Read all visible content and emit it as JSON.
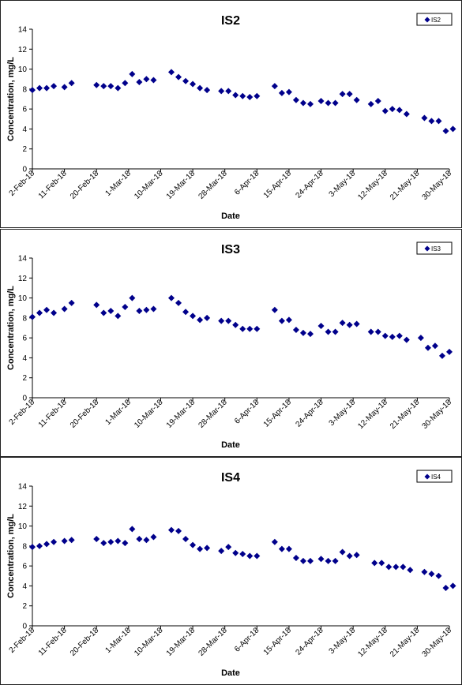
{
  "chart_data": [
    {
      "type": "scatter",
      "title": "IS2",
      "xlabel": "Date",
      "ylabel": "Concentration, mg/L",
      "ylim": [
        0,
        14
      ],
      "yticks": [
        0,
        2,
        4,
        6,
        8,
        10,
        12,
        14
      ],
      "xlim": [
        "2-Feb-18",
        "30-May-18"
      ],
      "xticks": [
        "2-Feb-18",
        "11-Feb-18",
        "20-Feb-18",
        "1-Mar-18",
        "10-Mar-18",
        "19-Mar-18",
        "28-Mar-18",
        "6-Apr-18",
        "15-Apr-18",
        "24-Apr-18",
        "3-May-18",
        "12-May-18",
        "21-May-18",
        "30-May-18"
      ],
      "legend": "top-right",
      "grid": false,
      "marker_color": "#00008B",
      "series": [
        {
          "name": "IS2",
          "points": [
            [
              "2-Feb-18",
              7.9
            ],
            [
              "4-Feb-18",
              8.1
            ],
            [
              "6-Feb-18",
              8.1
            ],
            [
              "8-Feb-18",
              8.3
            ],
            [
              "11-Feb-18",
              8.2
            ],
            [
              "13-Feb-18",
              8.6
            ],
            [
              "20-Feb-18",
              8.4
            ],
            [
              "22-Feb-18",
              8.3
            ],
            [
              "24-Feb-18",
              8.3
            ],
            [
              "26-Feb-18",
              8.1
            ],
            [
              "28-Feb-18",
              8.6
            ],
            [
              "2-Mar-18",
              9.5
            ],
            [
              "4-Mar-18",
              8.7
            ],
            [
              "6-Mar-18",
              9.0
            ],
            [
              "8-Mar-18",
              8.9
            ],
            [
              "13-Mar-18",
              9.7
            ],
            [
              "15-Mar-18",
              9.2
            ],
            [
              "17-Mar-18",
              8.8
            ],
            [
              "19-Mar-18",
              8.5
            ],
            [
              "21-Mar-18",
              8.1
            ],
            [
              "23-Mar-18",
              7.9
            ],
            [
              "27-Mar-18",
              7.8
            ],
            [
              "29-Mar-18",
              7.8
            ],
            [
              "31-Mar-18",
              7.4
            ],
            [
              "2-Apr-18",
              7.3
            ],
            [
              "4-Apr-18",
              7.2
            ],
            [
              "6-Apr-18",
              7.3
            ],
            [
              "11-Apr-18",
              8.3
            ],
            [
              "13-Apr-18",
              7.6
            ],
            [
              "15-Apr-18",
              7.7
            ],
            [
              "17-Apr-18",
              6.9
            ],
            [
              "19-Apr-18",
              6.6
            ],
            [
              "21-Apr-18",
              6.5
            ],
            [
              "24-Apr-18",
              6.8
            ],
            [
              "26-Apr-18",
              6.6
            ],
            [
              "28-Apr-18",
              6.6
            ],
            [
              "30-Apr-18",
              7.5
            ],
            [
              "2-May-18",
              7.5
            ],
            [
              "4-May-18",
              6.9
            ],
            [
              "8-May-18",
              6.5
            ],
            [
              "10-May-18",
              6.8
            ],
            [
              "12-May-18",
              5.8
            ],
            [
              "14-May-18",
              6.0
            ],
            [
              "16-May-18",
              5.9
            ],
            [
              "18-May-18",
              5.5
            ],
            [
              "23-May-18",
              5.1
            ],
            [
              "25-May-18",
              4.8
            ],
            [
              "27-May-18",
              4.8
            ],
            [
              "29-May-18",
              3.8
            ],
            [
              "31-May-18",
              4.0
            ]
          ]
        }
      ]
    },
    {
      "type": "scatter",
      "title": "IS3",
      "xlabel": "Date",
      "ylabel": "Concentration, mg/L",
      "ylim": [
        0,
        14
      ],
      "yticks": [
        0,
        2,
        4,
        6,
        8,
        10,
        12,
        14
      ],
      "xlim": [
        "2-Feb-18",
        "30-May-18"
      ],
      "xticks": [
        "2-Feb-18",
        "11-Feb-18",
        "20-Feb-18",
        "1-Mar-18",
        "10-Mar-18",
        "19-Mar-18",
        "28-Mar-18",
        "6-Apr-18",
        "15-Apr-18",
        "24-Apr-18",
        "3-May-18",
        "12-May-18",
        "21-May-18",
        "30-May-18"
      ],
      "legend": "top-right",
      "grid": false,
      "marker_color": "#00008B",
      "series": [
        {
          "name": "IS3",
          "points": [
            [
              "2-Feb-18",
              8.1
            ],
            [
              "4-Feb-18",
              8.5
            ],
            [
              "6-Feb-18",
              8.8
            ],
            [
              "8-Feb-18",
              8.5
            ],
            [
              "11-Feb-18",
              8.9
            ],
            [
              "13-Feb-18",
              9.5
            ],
            [
              "20-Feb-18",
              9.3
            ],
            [
              "22-Feb-18",
              8.5
            ],
            [
              "24-Feb-18",
              8.7
            ],
            [
              "26-Feb-18",
              8.2
            ],
            [
              "28-Feb-18",
              9.1
            ],
            [
              "2-Mar-18",
              10.0
            ],
            [
              "4-Mar-18",
              8.7
            ],
            [
              "6-Mar-18",
              8.8
            ],
            [
              "8-Mar-18",
              8.9
            ],
            [
              "13-Mar-18",
              10.0
            ],
            [
              "15-Mar-18",
              9.5
            ],
            [
              "17-Mar-18",
              8.6
            ],
            [
              "19-Mar-18",
              8.2
            ],
            [
              "21-Mar-18",
              7.8
            ],
            [
              "23-Mar-18",
              8.0
            ],
            [
              "27-Mar-18",
              7.7
            ],
            [
              "29-Mar-18",
              7.7
            ],
            [
              "31-Mar-18",
              7.3
            ],
            [
              "2-Apr-18",
              6.9
            ],
            [
              "4-Apr-18",
              6.9
            ],
            [
              "6-Apr-18",
              6.9
            ],
            [
              "11-Apr-18",
              8.8
            ],
            [
              "13-Apr-18",
              7.7
            ],
            [
              "15-Apr-18",
              7.8
            ],
            [
              "17-Apr-18",
              6.8
            ],
            [
              "19-Apr-18",
              6.5
            ],
            [
              "21-Apr-18",
              6.4
            ],
            [
              "24-Apr-18",
              7.2
            ],
            [
              "26-Apr-18",
              6.6
            ],
            [
              "28-Apr-18",
              6.6
            ],
            [
              "30-Apr-18",
              7.5
            ],
            [
              "2-May-18",
              7.3
            ],
            [
              "4-May-18",
              7.4
            ],
            [
              "8-May-18",
              6.6
            ],
            [
              "10-May-18",
              6.6
            ],
            [
              "12-May-18",
              6.2
            ],
            [
              "14-May-18",
              6.1
            ],
            [
              "16-May-18",
              6.2
            ],
            [
              "18-May-18",
              5.8
            ],
            [
              "22-May-18",
              6.0
            ],
            [
              "24-May-18",
              5.0
            ],
            [
              "26-May-18",
              5.2
            ],
            [
              "28-May-18",
              4.2
            ],
            [
              "30-May-18",
              4.6
            ]
          ]
        }
      ]
    },
    {
      "type": "scatter",
      "title": "IS4",
      "xlabel": "Date",
      "ylabel": "Concentration, mg/L",
      "ylim": [
        0,
        14
      ],
      "yticks": [
        0,
        2,
        4,
        6,
        8,
        10,
        12,
        14
      ],
      "xlim": [
        "2-Feb-18",
        "30-May-18"
      ],
      "xticks": [
        "2-Feb-18",
        "11-Feb-18",
        "20-Feb-18",
        "1-Mar-18",
        "10-Mar-18",
        "19-Mar-18",
        "28-Mar-18",
        "6-Apr-18",
        "15-Apr-18",
        "24-Apr-18",
        "3-May-18",
        "12-May-18",
        "21-May-18",
        "30-May-18"
      ],
      "legend": "top-right",
      "grid": false,
      "marker_color": "#00008B",
      "series": [
        {
          "name": "IS4",
          "points": [
            [
              "2-Feb-18",
              7.9
            ],
            [
              "4-Feb-18",
              8.0
            ],
            [
              "6-Feb-18",
              8.2
            ],
            [
              "8-Feb-18",
              8.4
            ],
            [
              "11-Feb-18",
              8.5
            ],
            [
              "13-Feb-18",
              8.6
            ],
            [
              "20-Feb-18",
              8.7
            ],
            [
              "22-Feb-18",
              8.3
            ],
            [
              "24-Feb-18",
              8.4
            ],
            [
              "26-Feb-18",
              8.5
            ],
            [
              "28-Feb-18",
              8.3
            ],
            [
              "2-Mar-18",
              9.7
            ],
            [
              "4-Mar-18",
              8.7
            ],
            [
              "6-Mar-18",
              8.6
            ],
            [
              "8-Mar-18",
              8.9
            ],
            [
              "13-Mar-18",
              9.6
            ],
            [
              "15-Mar-18",
              9.5
            ],
            [
              "17-Mar-18",
              8.7
            ],
            [
              "19-Mar-18",
              8.1
            ],
            [
              "21-Mar-18",
              7.7
            ],
            [
              "23-Mar-18",
              7.8
            ],
            [
              "27-Mar-18",
              7.5
            ],
            [
              "29-Mar-18",
              7.9
            ],
            [
              "31-Mar-18",
              7.3
            ],
            [
              "2-Apr-18",
              7.2
            ],
            [
              "4-Apr-18",
              7.0
            ],
            [
              "6-Apr-18",
              7.0
            ],
            [
              "11-Apr-18",
              8.4
            ],
            [
              "13-Apr-18",
              7.7
            ],
            [
              "15-Apr-18",
              7.7
            ],
            [
              "17-Apr-18",
              6.8
            ],
            [
              "19-Apr-18",
              6.5
            ],
            [
              "21-Apr-18",
              6.5
            ],
            [
              "24-Apr-18",
              6.7
            ],
            [
              "26-Apr-18",
              6.5
            ],
            [
              "28-Apr-18",
              6.5
            ],
            [
              "30-Apr-18",
              7.4
            ],
            [
              "2-May-18",
              7.0
            ],
            [
              "4-May-18",
              7.1
            ],
            [
              "9-May-18",
              6.3
            ],
            [
              "11-May-18",
              6.3
            ],
            [
              "13-May-18",
              5.9
            ],
            [
              "15-May-18",
              5.9
            ],
            [
              "17-May-18",
              5.9
            ],
            [
              "19-May-18",
              5.6
            ],
            [
              "23-May-18",
              5.4
            ],
            [
              "25-May-18",
              5.2
            ],
            [
              "27-May-18",
              5.0
            ],
            [
              "29-May-18",
              3.8
            ],
            [
              "31-May-18",
              4.0
            ]
          ]
        }
      ]
    }
  ]
}
